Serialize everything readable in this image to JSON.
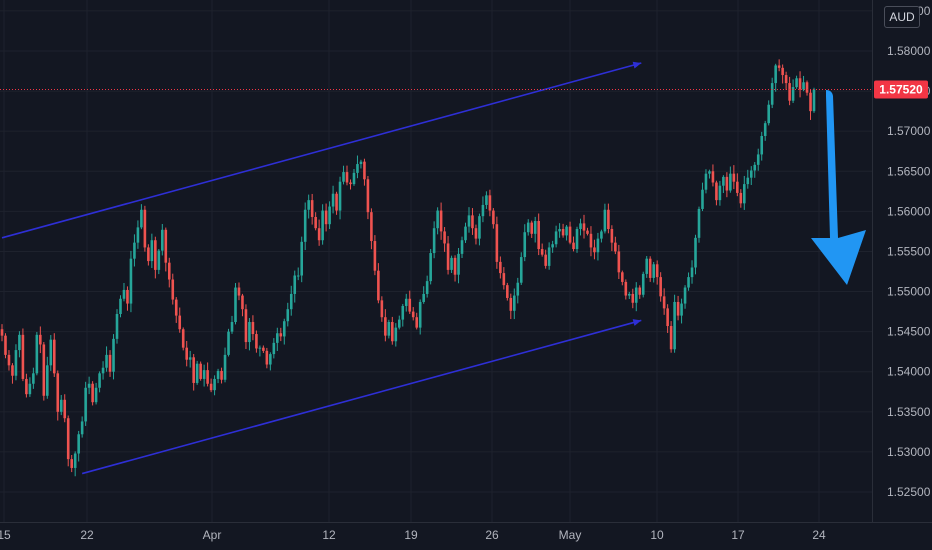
{
  "currency": "AUD",
  "colors": {
    "background": "#131722",
    "up": "#26a69a",
    "down": "#ef5350",
    "channel": "#2e2fd6",
    "arrow": "#2196f3",
    "price_line": "#f23645",
    "grid": "#1e222d"
  },
  "chart_data": {
    "type": "candlestick",
    "y_ticks": [
      "1.52500",
      "1.53000",
      "1.53500",
      "1.54000",
      "1.54500",
      "1.55000",
      "1.55500",
      "1.56000",
      "1.56500",
      "1.57000",
      "1.57500",
      "1.58000",
      "1.58500"
    ],
    "x_ticks": [
      "15",
      "22",
      "Apr",
      "12",
      "19",
      "26",
      "May",
      "10",
      "17",
      "24"
    ],
    "ylim": [
      1.5205,
      1.5855
    ],
    "current_price": "1.57520",
    "current_price_value": 1.5752,
    "series": [
      {
        "name": "channel-upper",
        "points": [
          [
            0,
            1.5567
          ],
          [
            180,
            1.5785
          ]
        ]
      },
      {
        "name": "channel-lower",
        "points": [
          [
            23,
            1.5273
          ],
          [
            180,
            1.5464
          ]
        ]
      }
    ],
    "bias": "bearish",
    "candles_close": [
      1.5445,
      1.5421,
      1.5408,
      1.5395,
      1.5427,
      1.5446,
      1.5391,
      1.5372,
      1.5385,
      1.5398,
      1.5446,
      1.5434,
      1.537,
      1.5408,
      1.544,
      1.5398,
      1.535,
      1.5365,
      1.5342,
      1.5291,
      1.528,
      1.5298,
      1.5322,
      1.5338,
      1.538,
      1.5385,
      1.5362,
      1.538,
      1.5398,
      1.5405,
      1.5421,
      1.54,
      1.5441,
      1.5472,
      1.5491,
      1.5502,
      1.5485,
      1.5541,
      1.5561,
      1.558,
      1.5602,
      1.5555,
      1.5538,
      1.5564,
      1.5527,
      1.5551,
      1.5577,
      1.5536,
      1.5515,
      1.549,
      1.547,
      1.5453,
      1.543,
      1.5415,
      1.5418,
      1.5386,
      1.541,
      1.5391,
      1.5402,
      1.5385,
      1.5377,
      1.5391,
      1.5401,
      1.539,
      1.5421,
      1.545,
      1.5462,
      1.5505,
      1.5495,
      1.5478,
      1.5437,
      1.5462,
      1.5447,
      1.5429,
      1.543,
      1.5426,
      1.5409,
      1.5422,
      1.5436,
      1.5448,
      1.5444,
      1.5463,
      1.5478,
      1.5497,
      1.552,
      1.552,
      1.5562,
      1.5602,
      1.5614,
      1.5593,
      1.5579,
      1.5564,
      1.5601,
      1.5584,
      1.5606,
      1.5622,
      1.5601,
      1.5637,
      1.5649,
      1.5636,
      1.5634,
      1.5648,
      1.5659,
      1.5662,
      1.564,
      1.5599,
      1.5563,
      1.5526,
      1.5489,
      1.5468,
      1.5445,
      1.5462,
      1.5438,
      1.5455,
      1.5465,
      1.5482,
      1.5491,
      1.5475,
      1.5468,
      1.5455,
      1.5487,
      1.5497,
      1.5513,
      1.5548,
      1.5579,
      1.5601,
      1.5575,
      1.556,
      1.5527,
      1.5542,
      1.5521,
      1.5547,
      1.5564,
      1.5581,
      1.5595,
      1.5579,
      1.5566,
      1.5594,
      1.5608,
      1.562,
      1.5601,
      1.5584,
      1.5537,
      1.5523,
      1.5508,
      1.5492,
      1.5476,
      1.5495,
      1.5511,
      1.5543,
      1.5574,
      1.5586,
      1.5572,
      1.5588,
      1.5553,
      1.5546,
      1.5532,
      1.5555,
      1.5559,
      1.5575,
      1.5578,
      1.557,
      1.5581,
      1.5561,
      1.5553,
      1.5578,
      1.5585,
      1.5576,
      1.5572,
      1.5555,
      1.5549,
      1.5566,
      1.5575,
      1.5602,
      1.5578,
      1.5561,
      1.555,
      1.5524,
      1.5512,
      1.5495,
      1.5497,
      1.5486,
      1.5505,
      1.5496,
      1.5522,
      1.5541,
      1.5517,
      1.5534,
      1.5518,
      1.5494,
      1.5479,
      1.5457,
      1.5428,
      1.5487,
      1.547,
      1.5485,
      1.5505,
      1.5518,
      1.553,
      1.5567,
      1.5603,
      1.5627,
      1.5647,
      1.565,
      1.5636,
      1.5614,
      1.5632,
      1.5643,
      1.5626,
      1.5647,
      1.5637,
      1.5623,
      1.561,
      1.5634,
      1.5642,
      1.5651,
      1.5658,
      1.5671,
      1.5694,
      1.571,
      1.5733,
      1.576,
      1.5782,
      1.5779,
      1.577,
      1.576,
      1.5738,
      1.5755,
      1.5766,
      1.5752,
      1.5761,
      1.5748,
      1.5725,
      1.5752
    ]
  }
}
